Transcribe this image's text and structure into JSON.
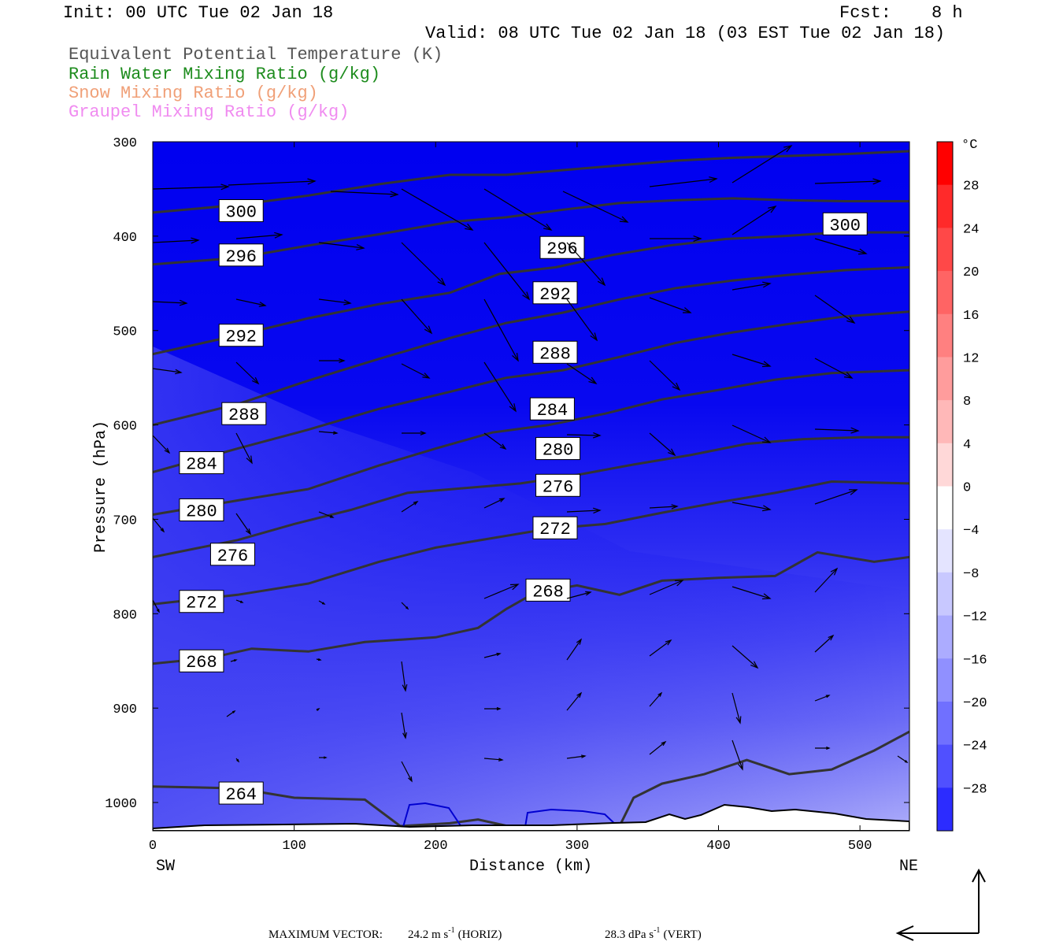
{
  "header": {
    "init": "Init: 00 UTC Tue 02 Jan 18",
    "fcst_label": "Fcst:",
    "fcst_value": "8 h",
    "valid": "Valid: 08 UTC Tue 02 Jan 18 (03 EST Tue 02 Jan 18)",
    "fields": [
      {
        "label": "Equivalent Potential Temperature (K)",
        "color": "#555555"
      },
      {
        "label": "Rain Water Mixing Ratio (g/kg)",
        "color": "#1e8c1e"
      },
      {
        "label": "Snow Mixing Ratio (g/kg)",
        "color": "#f0a078"
      },
      {
        "label": "Graupel Mixing Ratio (g/kg)",
        "color": "#f08cf0"
      }
    ]
  },
  "chart_data": {
    "type": "cross-section",
    "xlabel": "Distance (km)",
    "ylabel": "Pressure (hPa)",
    "x_ticks": [
      0,
      100,
      200,
      300,
      400,
      500
    ],
    "xlim": [
      0,
      535
    ],
    "y_ticks": [
      300,
      400,
      500,
      600,
      700,
      800,
      900,
      1000
    ],
    "ylim": [
      300,
      1030
    ],
    "y_scale": "linear, inverted",
    "left_end_label": "SW",
    "right_end_label": "NE",
    "colorbar": {
      "unit": "°C",
      "ticks": [
        28,
        24,
        20,
        16,
        12,
        8,
        4,
        0,
        -4,
        -8,
        -12,
        -16,
        -20,
        -24,
        -28
      ],
      "min": -32,
      "max": 32
    },
    "theta_e_contours": [
      {
        "value": 264,
        "label": "264",
        "label_pos": [
          48,
          990
        ],
        "line": [
          [
            0,
            983
          ],
          [
            60,
            985
          ],
          [
            100,
            995
          ],
          [
            150,
            997
          ],
          [
            175,
            1025
          ],
          [
            210,
            1022
          ],
          [
            230,
            1018
          ],
          [
            260,
            1028
          ],
          [
            300,
            1028
          ],
          [
            330,
            1025
          ],
          [
            340,
            995
          ],
          [
            360,
            980
          ],
          [
            390,
            970
          ],
          [
            420,
            955
          ],
          [
            450,
            970
          ],
          [
            480,
            965
          ],
          [
            510,
            945
          ],
          [
            535,
            925
          ]
        ]
      },
      {
        "value": 268,
        "label": "268",
        "label_pos": [
          20,
          850
        ],
        "line": [
          [
            0,
            853
          ],
          [
            40,
            847
          ],
          [
            70,
            837
          ],
          [
            110,
            840
          ],
          [
            150,
            830
          ],
          [
            200,
            825
          ],
          [
            230,
            815
          ],
          [
            250,
            795
          ],
          [
            270,
            778
          ],
          [
            300,
            770
          ],
          [
            330,
            780
          ],
          [
            360,
            765
          ],
          [
            400,
            762
          ],
          [
            440,
            760
          ],
          [
            470,
            735
          ],
          [
            510,
            745
          ],
          [
            535,
            740
          ]
        ]
      },
      {
        "value": 272,
        "label": "272",
        "label_pos": [
          20,
          787
        ],
        "line": [
          [
            0,
            790
          ],
          [
            60,
            780
          ],
          [
            110,
            768
          ],
          [
            160,
            745
          ],
          [
            200,
            730
          ],
          [
            240,
            720
          ],
          [
            280,
            710
          ],
          [
            320,
            705
          ],
          [
            360,
            693
          ],
          [
            400,
            682
          ],
          [
            440,
            672
          ],
          [
            480,
            660
          ],
          [
            535,
            662
          ]
        ]
      },
      {
        "value": 276,
        "label": "276",
        "label_pos": [
          42,
          737
        ],
        "line": [
          [
            0,
            740
          ],
          [
            60,
            722
          ],
          [
            100,
            705
          ],
          [
            140,
            690
          ],
          [
            180,
            672
          ],
          [
            220,
            667
          ],
          [
            260,
            662
          ],
          [
            300,
            653
          ],
          [
            340,
            642
          ],
          [
            380,
            632
          ],
          [
            420,
            620
          ],
          [
            460,
            615
          ],
          [
            500,
            613
          ],
          [
            535,
            613
          ]
        ]
      },
      {
        "value": 280,
        "label": "280",
        "label_pos": [
          20,
          690
        ],
        "line": [
          [
            0,
            695
          ],
          [
            60,
            680
          ],
          [
            110,
            668
          ],
          [
            160,
            643
          ],
          [
            200,
            625
          ],
          [
            240,
            608
          ],
          [
            280,
            600
          ],
          [
            320,
            588
          ],
          [
            360,
            573
          ],
          [
            400,
            563
          ],
          [
            440,
            552
          ],
          [
            480,
            545
          ],
          [
            535,
            542
          ]
        ]
      },
      {
        "value": 284,
        "label": "284",
        "label_pos": [
          20,
          640
        ],
        "line": [
          [
            0,
            650
          ],
          [
            60,
            625
          ],
          [
            110,
            605
          ],
          [
            160,
            583
          ],
          [
            210,
            565
          ],
          [
            250,
            550
          ],
          [
            290,
            542
          ],
          [
            330,
            528
          ],
          [
            370,
            513
          ],
          [
            410,
            502
          ],
          [
            450,
            493
          ],
          [
            490,
            485
          ],
          [
            535,
            480
          ]
        ]
      },
      {
        "value": 288,
        "label": "288",
        "label_pos": [
          50,
          588
        ],
        "line": [
          [
            0,
            600
          ],
          [
            60,
            578
          ],
          [
            110,
            553
          ],
          [
            160,
            530
          ],
          [
            210,
            508
          ],
          [
            250,
            492
          ],
          [
            290,
            481
          ],
          [
            330,
            467
          ],
          [
            370,
            455
          ],
          [
            410,
            447
          ],
          [
            450,
            441
          ],
          [
            490,
            436
          ],
          [
            535,
            433
          ]
        ]
      },
      {
        "value": 292,
        "label": "292",
        "label_pos": [
          48,
          505
        ],
        "line": [
          [
            0,
            525
          ],
          [
            60,
            505
          ],
          [
            110,
            487
          ],
          [
            160,
            472
          ],
          [
            210,
            460
          ],
          [
            245,
            440
          ],
          [
            285,
            433
          ],
          [
            325,
            420
          ],
          [
            365,
            410
          ],
          [
            405,
            403
          ],
          [
            445,
            400
          ],
          [
            485,
            396
          ],
          [
            535,
            396
          ]
        ]
      },
      {
        "value": 296,
        "label": "296",
        "label_pos": [
          48,
          420
        ],
        "line": [
          [
            0,
            430
          ],
          [
            60,
            423
          ],
          [
            110,
            410
          ],
          [
            160,
            398
          ],
          [
            210,
            385
          ],
          [
            250,
            380
          ],
          [
            290,
            372
          ],
          [
            330,
            365
          ],
          [
            370,
            362
          ],
          [
            410,
            360
          ],
          [
            450,
            362
          ],
          [
            490,
            363
          ],
          [
            535,
            363
          ]
        ]
      },
      {
        "value": 300,
        "label": "300",
        "label_pos": [
          48,
          373
        ],
        "line": [
          [
            0,
            375
          ],
          [
            60,
            367
          ],
          [
            110,
            357
          ],
          [
            160,
            345
          ],
          [
            210,
            335
          ],
          [
            250,
            335
          ],
          [
            290,
            330
          ],
          [
            330,
            325
          ],
          [
            370,
            320
          ],
          [
            410,
            317
          ],
          [
            450,
            315
          ],
          [
            490,
            313
          ],
          [
            535,
            310
          ]
        ]
      }
    ],
    "extra_contour_labels": [
      {
        "label": "300",
        "label_pos": [
          475,
          387
        ]
      },
      {
        "label": "296",
        "label_pos": [
          275,
          412
        ]
      },
      {
        "label": "292",
        "label_pos": [
          270,
          460
        ]
      },
      {
        "label": "288",
        "label_pos": [
          270,
          523
        ]
      },
      {
        "label": "284",
        "label_pos": [
          268,
          583
        ]
      },
      {
        "label": "280",
        "label_pos": [
          272,
          625
        ]
      },
      {
        "label": "276",
        "label_pos": [
          272,
          664
        ]
      },
      {
        "label": "272",
        "label_pos": [
          270,
          709
        ]
      },
      {
        "label": "268",
        "label_pos": [
          265,
          775
        ]
      }
    ],
    "footer": {
      "max_vector_label": "MAXIMUM VECTOR:",
      "horiz": "24.2 m s",
      "horiz_exp": "-1",
      "horiz_suffix": "(HORIZ)",
      "vert": "28.3 dPa s",
      "vert_exp": "-1",
      "vert_suffix": "(VERT)"
    }
  }
}
